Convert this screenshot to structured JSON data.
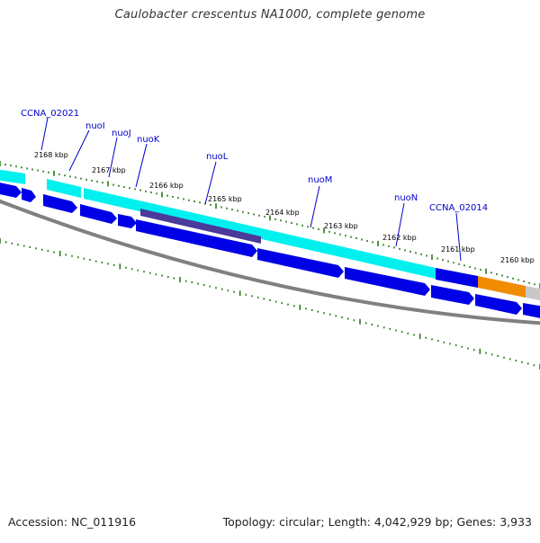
{
  "header": {
    "title": "Caulobacter crescentus NA1000, complete genome"
  },
  "footer": {
    "accession": "Accession: NC_011916",
    "topology": "Topology: circular; Length: 4,042,929 bp; Genes: 3,933"
  },
  "colors": {
    "cds_forward": "#0000e6",
    "cds_highlight": "#00f0f0",
    "cds_dark": "#4a3a9a",
    "other_feature": "#f08c00",
    "unassigned": "#c8c8c8",
    "backbone": "#808080",
    "tick": "#2a7a1a",
    "gene_label": "#0000cc"
  },
  "scale": {
    "labels": [
      "2168 kbp",
      "2167 kbp",
      "2166 kbp",
      "2165 kbp",
      "2164 kbp",
      "2163 kbp",
      "2162 kbp",
      "2161 kbp",
      "2160 kbp"
    ]
  },
  "genes": {
    "labels": [
      "CCNA_02021",
      "nuoI",
      "nuoJ",
      "nuoK",
      "nuoL",
      "nuoM",
      "nuoN",
      "CCNA_02014"
    ]
  }
}
